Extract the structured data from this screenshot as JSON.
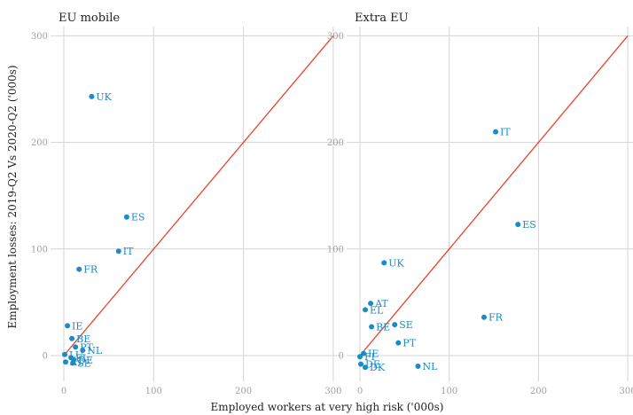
{
  "xlabel": "Employed workers at very high risk ('000s)",
  "ylabel": "Employment losses: 2019-Q2 Vs 2020-Q2 ('000s)",
  "colors": {
    "point": "#1a8bc9",
    "line": "#e8442a",
    "grid": "#d4d4d4"
  },
  "chart_data": [
    {
      "type": "scatter",
      "title": "EU mobile",
      "xlim": [
        0,
        300
      ],
      "ylim": [
        -15,
        300
      ],
      "xticks": [
        0,
        100,
        200,
        300
      ],
      "yticks": [
        0,
        100,
        200,
        300
      ],
      "reference_line": "y = x",
      "grid": true,
      "points": [
        {
          "label": "UK",
          "x": 31,
          "y": 243
        },
        {
          "label": "ES",
          "x": 70,
          "y": 130
        },
        {
          "label": "IT",
          "x": 61,
          "y": 98
        },
        {
          "label": "FR",
          "x": 17,
          "y": 81
        },
        {
          "label": "IE",
          "x": 4,
          "y": 28
        },
        {
          "label": "BE",
          "x": 9,
          "y": 16
        },
        {
          "label": "PT",
          "x": 13,
          "y": 8
        },
        {
          "label": "NL",
          "x": 21,
          "y": 5
        },
        {
          "label": "LU",
          "x": 1,
          "y": 1
        },
        {
          "label": "FI",
          "x": 8,
          "y": -2
        },
        {
          "label": "DE",
          "x": 11,
          "y": -4
        },
        {
          "label": "AT",
          "x": 2,
          "y": -6
        },
        {
          "label": "SE",
          "x": 10,
          "y": -7
        }
      ]
    },
    {
      "type": "scatter",
      "title": "Extra EU",
      "xlim": [
        0,
        300
      ],
      "ylim": [
        -15,
        300
      ],
      "xticks": [
        0,
        100,
        200,
        300
      ],
      "yticks": [
        0,
        100,
        200,
        300
      ],
      "reference_line": "y = x",
      "grid": true,
      "points": [
        {
          "label": "IT",
          "x": 152,
          "y": 210
        },
        {
          "label": "ES",
          "x": 177,
          "y": 123
        },
        {
          "label": "UK",
          "x": 27,
          "y": 87
        },
        {
          "label": "AT",
          "x": 12,
          "y": 49
        },
        {
          "label": "EL",
          "x": 6,
          "y": 43
        },
        {
          "label": "FR",
          "x": 139,
          "y": 36
        },
        {
          "label": "SE",
          "x": 39,
          "y": 29
        },
        {
          "label": "BE",
          "x": 13,
          "y": 27
        },
        {
          "label": "PT",
          "x": 43,
          "y": 12
        },
        {
          "label": "IE",
          "x": 4,
          "y": 2
        },
        {
          "label": "FI",
          "x": 0,
          "y": -1
        },
        {
          "label": "DE",
          "x": 1,
          "y": -8
        },
        {
          "label": "DK",
          "x": 6,
          "y": -11
        },
        {
          "label": "NL",
          "x": 65,
          "y": -10
        }
      ]
    }
  ]
}
